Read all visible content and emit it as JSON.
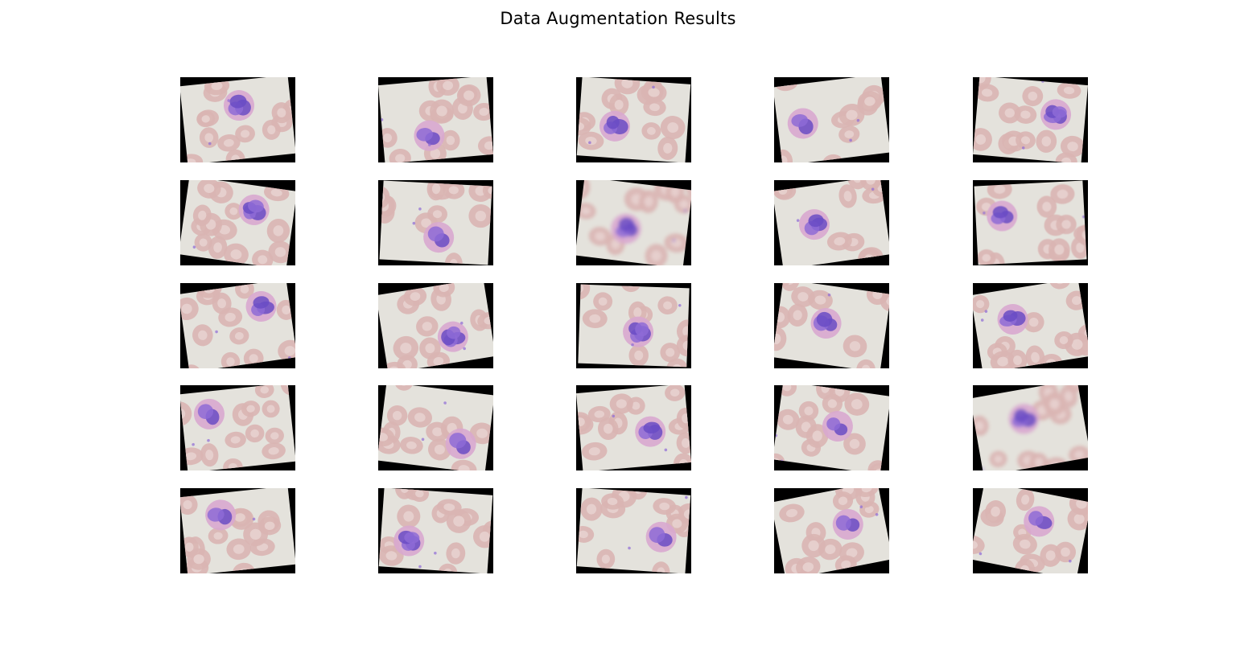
{
  "title": "Data Augmentation Results",
  "grid": {
    "rows": 5,
    "cols": 5
  },
  "colors": {
    "background": "#ffffff",
    "fill": "#000000",
    "smear": "#e4e2dc",
    "rbc": "#d9b5b3",
    "rbc_center": "#e9d5d2",
    "nucleus": "#8e6bd6",
    "nucleus_dark": "#6a4cc4",
    "cytoplasm": "#d8a9cf"
  },
  "images": [
    {
      "rotation": -6,
      "blur": 0
    },
    {
      "rotation": -5,
      "blur": 0
    },
    {
      "rotation": 4,
      "blur": 0
    },
    {
      "rotation": -7,
      "blur": 0
    },
    {
      "rotation": 5,
      "blur": 0
    },
    {
      "rotation": 8,
      "blur": 0
    },
    {
      "rotation": 3,
      "blur": 0
    },
    {
      "rotation": 7,
      "blur": 2
    },
    {
      "rotation": -8,
      "blur": 0
    },
    {
      "rotation": -3,
      "blur": 0.5
    },
    {
      "rotation": -8,
      "blur": 0
    },
    {
      "rotation": -9,
      "blur": 0
    },
    {
      "rotation": 2,
      "blur": 0
    },
    {
      "rotation": 8,
      "blur": 0
    },
    {
      "rotation": -9,
      "blur": 0
    },
    {
      "rotation": -6,
      "blur": 0
    },
    {
      "rotation": 7,
      "blur": 0
    },
    {
      "rotation": -5,
      "blur": 0
    },
    {
      "rotation": 8,
      "blur": 0
    },
    {
      "rotation": -10,
      "blur": 2
    },
    {
      "rotation": -6,
      "blur": 0
    },
    {
      "rotation": 4,
      "blur": 0
    },
    {
      "rotation": 4,
      "blur": 0
    },
    {
      "rotation": -11,
      "blur": 0
    },
    {
      "rotation": 11,
      "blur": 0
    }
  ]
}
